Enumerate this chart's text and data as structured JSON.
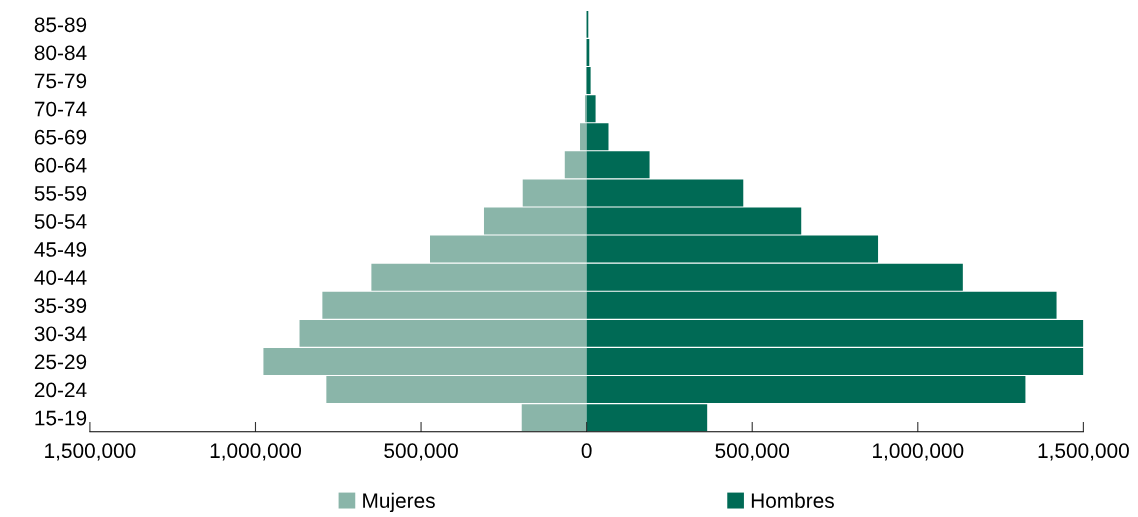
{
  "chart_data": {
    "type": "bar",
    "orientation": "horizontal",
    "categories": [
      "85-89",
      "80-84",
      "75-79",
      "70-74",
      "65-69",
      "60-64",
      "55-59",
      "50-54",
      "45-49",
      "40-44",
      "35-39",
      "30-34",
      "25-29",
      "20-24",
      "15-19"
    ],
    "series": [
      {
        "name": "Mujeres",
        "color": "#8ab5a9",
        "values": [
          -1000,
          -1000,
          -2000,
          -5000,
          -20000,
          -66000,
          -193000,
          -310000,
          -473000,
          -650000,
          -798000,
          -867000,
          -976000,
          -786000,
          -196000
        ]
      },
      {
        "name": "Hombres",
        "color": "#006a55",
        "values": [
          5000,
          8000,
          12000,
          27000,
          66000,
          190000,
          473000,
          648000,
          880000,
          1136000,
          1419000,
          1500000,
          1500000,
          1325000,
          364000
        ]
      }
    ],
    "xlim": [
      -1500000,
      1500000
    ],
    "xticks": [
      {
        "value": -1500000,
        "label": "1,500,000"
      },
      {
        "value": -1000000,
        "label": "1,000,000"
      },
      {
        "value": -500000,
        "label": "500,000"
      },
      0,
      {
        "value": 500000,
        "label": "500,000"
      },
      {
        "value": 1000000,
        "label": "1,000,000"
      },
      {
        "value": 1500000,
        "label": "1,500,000"
      }
    ],
    "stacked": true,
    "grid": false,
    "legend": "bottom"
  }
}
